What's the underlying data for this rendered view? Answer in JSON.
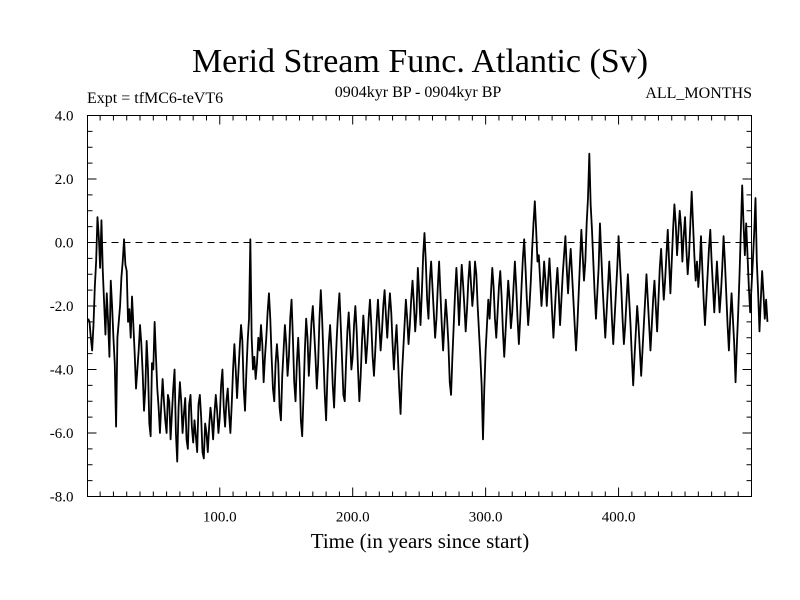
{
  "chart_data": {
    "type": "line",
    "title": "Merid Stream Func. Atlantic (Sv)",
    "subtitle_left": "Expt = tfMC6-teVT6",
    "subtitle_center": "0904kyr BP - 0904kyr BP",
    "subtitle_right": "ALL_MONTHS",
    "xlabel": "Time (in years since start)",
    "ylabel": "",
    "xlim": [
      0.5,
      500
    ],
    "ylim": [
      -8.0,
      4.0
    ],
    "x_ticks": [
      100,
      200,
      300,
      400
    ],
    "x_tick_labels": [
      "100.0",
      "200.0",
      "300.0",
      "400.0"
    ],
    "y_ticks": [
      4,
      2,
      0,
      -2,
      -4,
      -6,
      -8
    ],
    "y_tick_labels": [
      "4.0",
      "2.0",
      "0.0",
      "-2.0",
      "-4.0",
      "-6.0",
      "-8.0"
    ],
    "reference_line": {
      "y": 0.0,
      "style": "dashed"
    },
    "grid": false,
    "series": [
      {
        "name": "Merid Stream Func. Atlantic",
        "color": "#000000",
        "x_start": 1,
        "x_step": 1,
        "values": [
          -2.4,
          -2.5,
          -3.0,
          -3.4,
          -2.6,
          -1.4,
          -0.6,
          0.8,
          0.2,
          -0.8,
          0.7,
          -0.9,
          -1.9,
          -2.9,
          -1.6,
          -2.5,
          -3.6,
          -1.2,
          -2.0,
          -3.0,
          -3.8,
          -5.8,
          -3.0,
          -2.5,
          -2.0,
          -1.1,
          -0.6,
          0.1,
          -0.7,
          -0.9,
          -2.5,
          -2.1,
          -3.0,
          -1.7,
          -2.6,
          -3.5,
          -4.6,
          -4.0,
          -3.4,
          -2.6,
          -3.2,
          -4.1,
          -5.3,
          -4.6,
          -3.1,
          -4.0,
          -5.7,
          -6.1,
          -3.8,
          -4.0,
          -2.5,
          -3.6,
          -4.6,
          -5.2,
          -6.0,
          -5.1,
          -4.3,
          -5.0,
          -5.6,
          -6.0,
          -4.8,
          -5.0,
          -6.2,
          -5.4,
          -4.6,
          -4.0,
          -6.0,
          -6.9,
          -5.2,
          -4.4,
          -5.0,
          -6.0,
          -5.4,
          -4.9,
          -6.2,
          -6.5,
          -5.1,
          -4.8,
          -5.8,
          -6.3,
          -5.6,
          -6.1,
          -6.6,
          -5.1,
          -4.8,
          -5.5,
          -6.6,
          -6.8,
          -5.7,
          -6.0,
          -6.6,
          -5.8,
          -5.2,
          -5.6,
          -6.2,
          -5.4,
          -4.8,
          -5.3,
          -6.0,
          -5.5,
          -4.5,
          -4.0,
          -5.2,
          -5.8,
          -5.0,
          -4.6,
          -5.4,
          -6.0,
          -5.1,
          -4.0,
          -3.2,
          -4.0,
          -4.9,
          -4.1,
          -3.3,
          -2.6,
          -3.1,
          -4.6,
          -5.3,
          -4.1,
          -3.1,
          -2.4,
          0.1,
          -3.0,
          -4.0,
          -3.6,
          -4.3,
          -3.8,
          -3.0,
          -3.4,
          -2.6,
          -3.2,
          -4.4,
          -3.6,
          -3.0,
          -2.2,
          -1.6,
          -2.4,
          -3.6,
          -4.6,
          -5.0,
          -3.8,
          -3.2,
          -3.8,
          -5.2,
          -5.6,
          -4.2,
          -3.4,
          -2.6,
          -3.2,
          -4.2,
          -3.6,
          -2.4,
          -1.8,
          -3.0,
          -4.4,
          -5.0,
          -3.8,
          -3.0,
          -4.0,
          -5.6,
          -6.1,
          -4.8,
          -3.4,
          -2.4,
          -3.0,
          -4.2,
          -3.4,
          -2.5,
          -2.0,
          -2.8,
          -3.6,
          -4.6,
          -3.8,
          -2.4,
          -1.5,
          -2.4,
          -3.6,
          -4.8,
          -5.6,
          -4.2,
          -3.2,
          -2.6,
          -3.4,
          -4.5,
          -5.2,
          -4.0,
          -3.0,
          -2.2,
          -1.6,
          -2.6,
          -3.7,
          -4.8,
          -5.0,
          -3.8,
          -2.8,
          -2.2,
          -3.0,
          -4.0,
          -3.6,
          -2.6,
          -2.0,
          -2.8,
          -4.0,
          -5.0,
          -4.2,
          -3.1,
          -2.3,
          -3.0,
          -3.8,
          -3.2,
          -2.4,
          -1.8,
          -2.6,
          -3.6,
          -4.2,
          -3.4,
          -2.5,
          -1.8,
          -2.6,
          -3.4,
          -2.8,
          -2.0,
          -1.5,
          -2.3,
          -3.0,
          -2.2,
          -1.6,
          -2.2,
          -3.2,
          -4.0,
          -3.2,
          -2.6,
          -3.6,
          -4.6,
          -5.4,
          -4.2,
          -3.4,
          -2.6,
          -1.8,
          -2.4,
          -3.2,
          -2.6,
          -1.8,
          -1.2,
          -1.9,
          -2.8,
          -2.2,
          -0.8,
          -1.6,
          -2.6,
          -1.6,
          -0.4,
          0.3,
          -0.6,
          -1.8,
          -2.4,
          -1.2,
          -0.6,
          -1.4,
          -2.2,
          -3.0,
          -2.4,
          -1.4,
          -0.6,
          -1.6,
          -2.6,
          -3.4,
          -2.6,
          -1.8,
          -2.4,
          -3.2,
          -4.4,
          -4.8,
          -3.6,
          -2.6,
          -1.6,
          -0.8,
          -1.6,
          -2.6,
          -1.6,
          -0.7,
          -1.3,
          -2.0,
          -2.8,
          -2.1,
          -1.2,
          -0.6,
          -1.3,
          -2.0,
          -1.5,
          -0.6,
          -1.0,
          -2.0,
          -2.8,
          -3.6,
          -4.5,
          -6.2,
          -4.6,
          -3.4,
          -2.6,
          -1.8,
          -2.4,
          -1.6,
          -0.8,
          -1.4,
          -2.4,
          -3.0,
          -2.2,
          -1.4,
          -0.9,
          -1.7,
          -2.8,
          -3.6,
          -2.8,
          -2.0,
          -1.2,
          -1.8,
          -2.7,
          -2.2,
          -1.4,
          -0.6,
          -1.4,
          -2.4,
          -3.2,
          -2.4,
          -1.4,
          -0.5,
          0.1,
          -0.8,
          -1.8,
          -2.6,
          -2.0,
          -1.2,
          -0.2,
          0.6,
          1.3,
          0.4,
          -0.6,
          -0.4,
          -1.2,
          -2.0,
          -1.4,
          -0.6,
          -1.2,
          -2.0,
          -1.2,
          -0.5,
          -1.3,
          -2.2,
          -3.0,
          -2.2,
          -1.4,
          -0.8,
          -1.6,
          -2.6,
          -1.8,
          -1.0,
          -0.4,
          0.2,
          -0.8,
          -1.6,
          -0.8,
          -0.2,
          -1.0,
          -1.8,
          -2.6,
          -3.4,
          -2.6,
          -1.6,
          -0.6,
          0.4,
          -0.4,
          -1.2,
          -0.6,
          0.6,
          1.4,
          2.8,
          1.2,
          0.4,
          -0.6,
          -1.6,
          -2.4,
          -1.6,
          -0.8,
          0.6,
          -0.4,
          -1.4,
          -2.2,
          -3.0,
          -2.2,
          -1.4,
          -0.6,
          -1.4,
          -2.4,
          -3.2,
          -2.4,
          -1.6,
          -0.8,
          0.2,
          -0.6,
          -1.4,
          -2.4,
          -3.2,
          -2.6,
          -1.8,
          -1.0,
          -1.8,
          -2.6,
          -3.6,
          -4.5,
          -3.6,
          -2.8,
          -2.0,
          -2.6,
          -3.4,
          -4.2,
          -3.4,
          -2.6,
          -1.8,
          -1.0,
          -1.8,
          -2.6,
          -3.4,
          -2.6,
          -1.8,
          -1.2,
          -2.0,
          -2.8,
          -1.8,
          -0.8,
          -0.2,
          -1.0,
          -1.8,
          -1.2,
          -0.4,
          0.4,
          -0.6,
          -1.6,
          -0.6,
          0.4,
          1.2,
          0.6,
          -0.4,
          0.3,
          1.0,
          0.5,
          -0.6,
          0.2,
          0.8,
          -0.2,
          -1.0,
          -0.4,
          0.6,
          1.6,
          0.6,
          -0.4,
          -1.2,
          -0.6,
          -1.4,
          -0.8,
          0.2,
          -0.8,
          -1.8,
          -2.6,
          -1.8,
          -1.0,
          -0.2,
          0.4,
          -0.6,
          -1.4,
          -2.2,
          -1.4,
          -0.6,
          -1.4,
          -2.2,
          -1.6,
          -0.8,
          0.2,
          -0.6,
          -1.6,
          -2.6,
          -3.4,
          -2.4,
          -1.6,
          -2.4,
          -3.2,
          -4.4,
          -3.2,
          -2.2,
          -1.0,
          0.4,
          1.8,
          0.6,
          -0.4,
          0.6,
          -0.4,
          -1.4,
          -2.2,
          -1.4,
          -0.6,
          0.3,
          1.4,
          -0.6,
          -1.6,
          -2.8,
          -1.8,
          -0.9,
          -1.6,
          -2.4,
          -1.8,
          -2.5
        ]
      }
    ]
  }
}
